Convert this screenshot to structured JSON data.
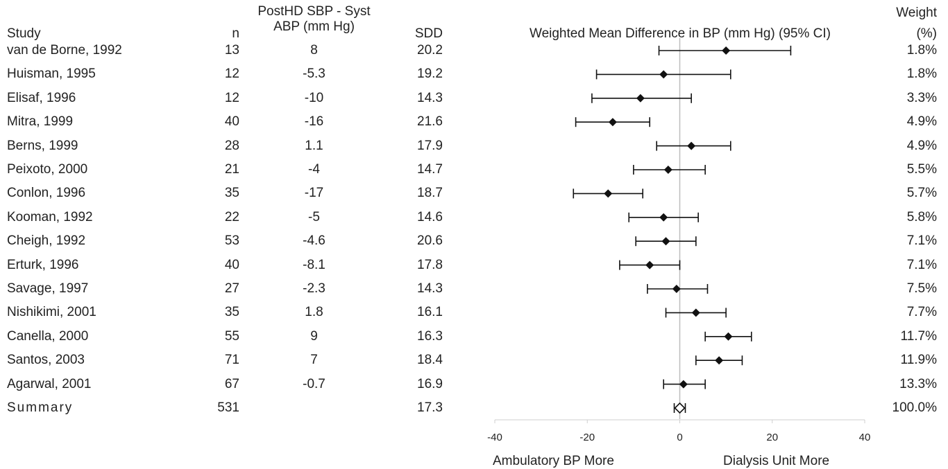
{
  "headers": {
    "study": "Study",
    "n": "n",
    "abp_line1": "PostHD SBP - Syst",
    "abp_line2": "ABP (mm Hg)",
    "sdd": "SDD",
    "plot_title": "Weighted Mean Difference in BP (mm Hg) (95% CI)",
    "weight_line1": "Weight",
    "weight_line2": "(%)"
  },
  "footer": {
    "left_label": "Ambulatory BP More",
    "right_label": "Dialysis Unit More"
  },
  "chart_data": {
    "type": "forest",
    "xlim": [
      -40,
      40
    ],
    "xticks": [
      -40,
      -20,
      0,
      20,
      40
    ],
    "reference_line": 0,
    "rows": [
      {
        "study": "van de Borne, 1992",
        "n": "13",
        "abp": "8",
        "sdd": "20.2",
        "weight": "1.8%",
        "mean": 10,
        "lo": -4.5,
        "hi": 24
      },
      {
        "study": "Huisman, 1995",
        "n": "12",
        "abp": "-5.3",
        "sdd": "19.2",
        "weight": "1.8%",
        "mean": -3.5,
        "lo": -18,
        "hi": 11
      },
      {
        "study": "Elisaf, 1996",
        "n": "12",
        "abp": "-10",
        "sdd": "14.3",
        "weight": "3.3%",
        "mean": -8.5,
        "lo": -19,
        "hi": 2.5
      },
      {
        "study": "Mitra, 1999",
        "n": "40",
        "abp": "-16",
        "sdd": "21.6",
        "weight": "4.9%",
        "mean": -14.5,
        "lo": -22.5,
        "hi": -6.5
      },
      {
        "study": "Berns, 1999",
        "n": "28",
        "abp": "1.1",
        "sdd": "17.9",
        "weight": "4.9%",
        "mean": 2.5,
        "lo": -5,
        "hi": 11
      },
      {
        "study": "Peixoto, 2000",
        "n": "21",
        "abp": "-4",
        "sdd": "14.7",
        "weight": "5.5%",
        "mean": -2.5,
        "lo": -10,
        "hi": 5.5
      },
      {
        "study": "Conlon, 1996",
        "n": "35",
        "abp": "-17",
        "sdd": "18.7",
        "weight": "5.7%",
        "mean": -15.5,
        "lo": -23,
        "hi": -8
      },
      {
        "study": "Kooman, 1992",
        "n": "22",
        "abp": "-5",
        "sdd": "14.6",
        "weight": "5.8%",
        "mean": -3.5,
        "lo": -11,
        "hi": 4
      },
      {
        "study": "Cheigh, 1992",
        "n": "53",
        "abp": "-4.6",
        "sdd": "20.6",
        "weight": "7.1%",
        "mean": -3,
        "lo": -9.5,
        "hi": 3.5
      },
      {
        "study": "Erturk, 1996",
        "n": "40",
        "abp": "-8.1",
        "sdd": "17.8",
        "weight": "7.1%",
        "mean": -6.5,
        "lo": -13,
        "hi": 0
      },
      {
        "study": "Savage, 1997",
        "n": "27",
        "abp": "-2.3",
        "sdd": "14.3",
        "weight": "7.5%",
        "mean": -0.7,
        "lo": -7,
        "hi": 6
      },
      {
        "study": "Nishikimi, 2001",
        "n": "35",
        "abp": "1.8",
        "sdd": "16.1",
        "weight": "7.7%",
        "mean": 3.5,
        "lo": -3,
        "hi": 10
      },
      {
        "study": "Canella, 2000",
        "n": "55",
        "abp": "9",
        "sdd": "16.3",
        "weight": "11.7%",
        "mean": 10.5,
        "lo": 5.5,
        "hi": 15.5
      },
      {
        "study": "Santos, 2003",
        "n": "71",
        "abp": "7",
        "sdd": "18.4",
        "weight": "11.9%",
        "mean": 8.5,
        "lo": 3.5,
        "hi": 13.5
      },
      {
        "study": "Agarwal, 2001",
        "n": "67",
        "abp": "-0.7",
        "sdd": "16.9",
        "weight": "13.3%",
        "mean": 0.8,
        "lo": -3.5,
        "hi": 5.5
      }
    ],
    "summary": {
      "study": "Summary",
      "n": "531",
      "abp": "",
      "sdd": "17.3",
      "weight": "100.0%",
      "mean": 0,
      "lo": -1.2,
      "hi": 1.2
    }
  }
}
